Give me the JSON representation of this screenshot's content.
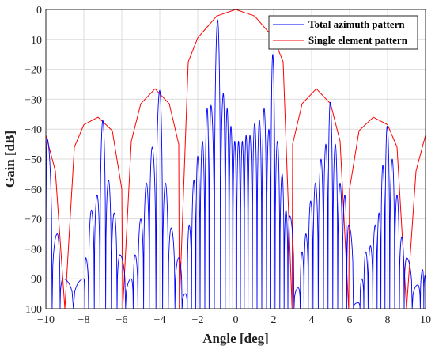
{
  "chart_data": {
    "type": "line",
    "xlabel": "Angle [deg]",
    "ylabel": "Gain [dB]",
    "xlim": [
      -10,
      10
    ],
    "ylim": [
      -100,
      0
    ],
    "xticks": [
      "−10",
      "−8",
      "−6",
      "−4",
      "−2",
      "0",
      "2",
      "4",
      "6",
      "8",
      "10"
    ],
    "yticks": [
      "0",
      "−10",
      "−20",
      "−30",
      "−40",
      "−50",
      "−60",
      "−70",
      "−80",
      "−90",
      "−100"
    ],
    "grid": true,
    "legend_position": "top-right",
    "series": [
      {
        "name": "Total azimuth pattern",
        "color": "#0000ff",
        "peaks": [
          {
            "x": -9.94,
            "y": -43
          },
          {
            "x": -9.4,
            "y": -75
          },
          {
            "x": -9.1,
            "y": -90
          },
          {
            "x": -8.0,
            "y": -90
          },
          {
            "x": -7.9,
            "y": -83
          },
          {
            "x": -7.6,
            "y": -67
          },
          {
            "x": -7.3,
            "y": -62
          },
          {
            "x": -7.0,
            "y": -37
          },
          {
            "x": -6.7,
            "y": -57
          },
          {
            "x": -6.4,
            "y": -68
          },
          {
            "x": -6.1,
            "y": -82
          },
          {
            "x": -5.5,
            "y": -90
          },
          {
            "x": -5.3,
            "y": -82
          },
          {
            "x": -5.0,
            "y": -70
          },
          {
            "x": -4.7,
            "y": -58
          },
          {
            "x": -4.4,
            "y": -46
          },
          {
            "x": -4.0,
            "y": -27
          },
          {
            "x": -3.7,
            "y": -58
          },
          {
            "x": -3.4,
            "y": -73
          },
          {
            "x": -3.0,
            "y": -83
          },
          {
            "x": -2.65,
            "y": -95
          },
          {
            "x": -2.45,
            "y": -72
          },
          {
            "x": -2.2,
            "y": -57
          },
          {
            "x": -2.0,
            "y": -49
          },
          {
            "x": -1.75,
            "y": -44
          },
          {
            "x": -1.5,
            "y": -33
          },
          {
            "x": -1.3,
            "y": -32
          },
          {
            "x": -0.95,
            "y": -3.5
          },
          {
            "x": -0.65,
            "y": -28
          },
          {
            "x": -0.45,
            "y": -33
          },
          {
            "x": -0.25,
            "y": -39
          },
          {
            "x": -0.05,
            "y": -44
          },
          {
            "x": 0.15,
            "y": -44
          },
          {
            "x": 0.35,
            "y": -44
          },
          {
            "x": 0.55,
            "y": -42
          },
          {
            "x": 0.75,
            "y": -42
          },
          {
            "x": 1.0,
            "y": -38
          },
          {
            "x": 1.25,
            "y": -37
          },
          {
            "x": 1.5,
            "y": -33
          },
          {
            "x": 1.75,
            "y": -40
          },
          {
            "x": 1.95,
            "y": -15
          },
          {
            "x": 2.2,
            "y": -44
          },
          {
            "x": 2.45,
            "y": -55
          },
          {
            "x": 2.65,
            "y": -67
          },
          {
            "x": 2.85,
            "y": -69
          },
          {
            "x": 3.3,
            "y": -93
          },
          {
            "x": 3.5,
            "y": -81
          },
          {
            "x": 3.7,
            "y": -75
          },
          {
            "x": 3.95,
            "y": -64
          },
          {
            "x": 4.2,
            "y": -58
          },
          {
            "x": 4.5,
            "y": -50
          },
          {
            "x": 4.75,
            "y": -45
          },
          {
            "x": 4.98,
            "y": -31
          },
          {
            "x": 5.25,
            "y": -45
          },
          {
            "x": 5.5,
            "y": -58
          },
          {
            "x": 5.75,
            "y": -62
          },
          {
            "x": 5.95,
            "y": -72
          },
          {
            "x": 6.45,
            "y": -98
          },
          {
            "x": 6.65,
            "y": -90
          },
          {
            "x": 6.85,
            "y": -81
          },
          {
            "x": 7.1,
            "y": -79
          },
          {
            "x": 7.35,
            "y": -72
          },
          {
            "x": 7.55,
            "y": -68
          },
          {
            "x": 7.75,
            "y": -52
          },
          {
            "x": 7.98,
            "y": -39
          },
          {
            "x": 8.25,
            "y": -50
          },
          {
            "x": 8.5,
            "y": -62
          },
          {
            "x": 8.75,
            "y": -76
          },
          {
            "x": 9.0,
            "y": -83
          },
          {
            "x": 9.6,
            "y": -92
          },
          {
            "x": 9.85,
            "y": -87
          },
          {
            "x": 9.97,
            "y": -89
          }
        ]
      },
      {
        "name": "Single element pattern",
        "color": "#ff0000",
        "envelope": [
          {
            "x": -10.0,
            "y": -42
          },
          {
            "x": -9.5,
            "y": -54
          },
          {
            "x": -9.0,
            "y": -100
          },
          {
            "x": -8.5,
            "y": -46
          },
          {
            "x": -8.0,
            "y": -38.5
          },
          {
            "x": -7.25,
            "y": -36
          },
          {
            "x": -6.5,
            "y": -40.5
          },
          {
            "x": -6.0,
            "y": -60
          },
          {
            "x": -5.95,
            "y": -100
          },
          {
            "x": -5.5,
            "y": -44
          },
          {
            "x": -5.0,
            "y": -31.5
          },
          {
            "x": -4.25,
            "y": -26.5
          },
          {
            "x": -3.5,
            "y": -31.5
          },
          {
            "x": -3.0,
            "y": -45
          },
          {
            "x": -2.97,
            "y": -100
          },
          {
            "x": -2.5,
            "y": -17.5
          },
          {
            "x": -2.0,
            "y": -9.5
          },
          {
            "x": -1.0,
            "y": -2.2
          },
          {
            "x": 0.0,
            "y": 0
          },
          {
            "x": 1.0,
            "y": -2.2
          },
          {
            "x": 2.0,
            "y": -9.5
          },
          {
            "x": 2.5,
            "y": -17.5
          },
          {
            "x": 2.97,
            "y": -100
          },
          {
            "x": 3.0,
            "y": -45
          },
          {
            "x": 3.5,
            "y": -31.5
          },
          {
            "x": 4.25,
            "y": -26.5
          },
          {
            "x": 5.0,
            "y": -31.5
          },
          {
            "x": 5.5,
            "y": -44
          },
          {
            "x": 5.95,
            "y": -100
          },
          {
            "x": 6.0,
            "y": -60
          },
          {
            "x": 6.5,
            "y": -40.5
          },
          {
            "x": 7.25,
            "y": -36
          },
          {
            "x": 8.0,
            "y": -38.5
          },
          {
            "x": 8.5,
            "y": -46
          },
          {
            "x": 9.0,
            "y": -100
          },
          {
            "x": 9.5,
            "y": -54
          },
          {
            "x": 10.0,
            "y": -42
          }
        ]
      }
    ]
  }
}
